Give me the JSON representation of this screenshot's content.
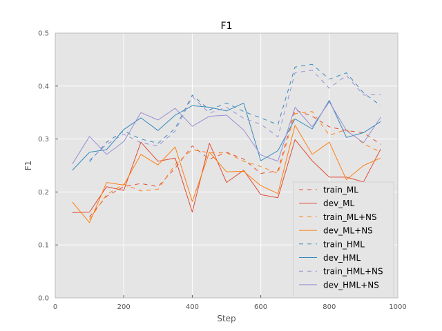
{
  "chart_data": {
    "type": "line",
    "title": "F1",
    "xlabel": "Step",
    "ylabel": "F1",
    "xlim": [
      0,
      1000
    ],
    "ylim": [
      0,
      0.5
    ],
    "xticks": [
      0,
      200,
      400,
      600,
      800,
      1000
    ],
    "xtick_labels": [
      "0",
      "200",
      "400",
      "600",
      "800",
      "1000"
    ],
    "yticks": [
      0.0,
      0.1,
      0.2,
      0.3,
      0.4,
      0.5
    ],
    "ytick_labels": [
      "0.0",
      "0.1",
      "0.2",
      "0.3",
      "0.4",
      "0.5"
    ],
    "grid": true,
    "legend_position": "bottom-right",
    "x": [
      50,
      100,
      150,
      200,
      250,
      300,
      350,
      400,
      450,
      500,
      550,
      600,
      650,
      700,
      750,
      800,
      850,
      900,
      950
    ],
    "series": [
      {
        "name": "train_ML",
        "color": "#E24A33",
        "dashed": true,
        "values": [
          null,
          0.153,
          0.192,
          0.21,
          0.216,
          0.21,
          0.245,
          0.287,
          0.262,
          0.275,
          0.262,
          0.235,
          0.24,
          0.355,
          0.343,
          0.323,
          0.316,
          0.312,
          0.29
        ]
      },
      {
        "name": "dev_ML",
        "color": "#E24A33",
        "dashed": false,
        "values": [
          0.161,
          0.162,
          0.21,
          0.203,
          0.294,
          0.258,
          0.264,
          0.162,
          0.292,
          0.218,
          0.241,
          0.195,
          0.189,
          0.299,
          0.259,
          0.228,
          0.228,
          0.219,
          0.281
        ]
      },
      {
        "name": "train_ML+NS",
        "color": "#FF7F0E",
        "dashed": true,
        "values": [
          null,
          0.148,
          0.195,
          0.215,
          0.202,
          0.205,
          0.252,
          0.28,
          0.274,
          0.274,
          0.258,
          0.248,
          0.235,
          0.348,
          0.352,
          0.307,
          0.318,
          0.291,
          0.275
        ]
      },
      {
        "name": "dev_ML+NS",
        "color": "#FF7F0E",
        "dashed": false,
        "values": [
          0.181,
          0.142,
          0.218,
          0.213,
          0.271,
          0.251,
          0.285,
          0.182,
          0.275,
          0.238,
          0.239,
          0.212,
          0.197,
          0.326,
          0.271,
          0.294,
          0.223,
          0.25,
          0.264
        ]
      },
      {
        "name": "train_HML",
        "color": "#348ABD",
        "dashed": true,
        "values": [
          null,
          0.257,
          0.294,
          0.315,
          0.3,
          0.292,
          0.32,
          0.383,
          0.355,
          0.368,
          0.352,
          0.34,
          0.327,
          0.436,
          0.441,
          0.413,
          0.425,
          0.387,
          0.363
        ]
      },
      {
        "name": "dev_HML",
        "color": "#348ABD",
        "dashed": false,
        "values": [
          0.241,
          0.275,
          0.28,
          0.318,
          0.34,
          0.316,
          0.345,
          0.363,
          0.36,
          0.353,
          0.368,
          0.259,
          0.278,
          0.338,
          0.319,
          0.373,
          0.303,
          0.312,
          0.333
        ]
      },
      {
        "name": "train_HML+NS",
        "color": "#988ED5",
        "dashed": true,
        "values": [
          null,
          0.26,
          0.29,
          0.309,
          0.293,
          0.287,
          0.315,
          0.38,
          0.349,
          0.36,
          0.339,
          0.328,
          0.304,
          0.425,
          0.43,
          0.396,
          0.42,
          0.383,
          0.384
        ]
      },
      {
        "name": "dev_HML+NS",
        "color": "#988ED5",
        "dashed": false,
        "values": [
          0.253,
          0.305,
          0.271,
          0.295,
          0.35,
          0.336,
          0.358,
          0.324,
          0.343,
          0.345,
          0.317,
          0.27,
          0.258,
          0.36,
          0.323,
          0.37,
          0.316,
          0.293,
          0.341
        ]
      }
    ]
  }
}
